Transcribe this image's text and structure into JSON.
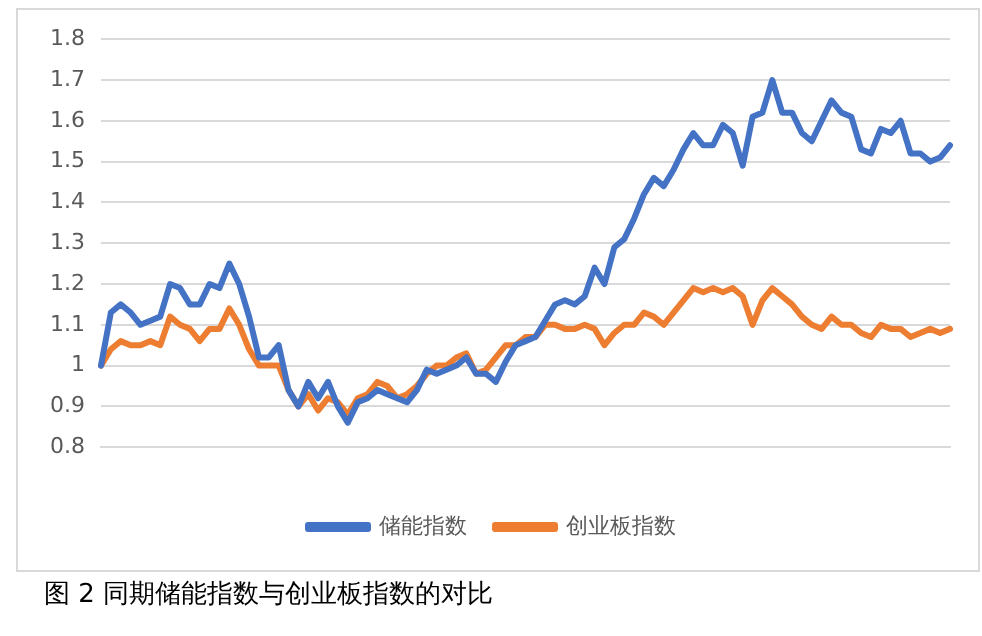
{
  "chart_data": {
    "type": "line",
    "title": "图 2 同期储能指数与创业板指数的对比",
    "categories": [
      null,
      null,
      null,
      null,
      null,
      null,
      null,
      null,
      null,
      null,
      null,
      null,
      null,
      null,
      null,
      null,
      null,
      null,
      null,
      null,
      null,
      null,
      null,
      null,
      null,
      null,
      null,
      null,
      null,
      null,
      null,
      null,
      null,
      null,
      null,
      null,
      null,
      null,
      null,
      null,
      null,
      null,
      null,
      null,
      null,
      null,
      null,
      null,
      null,
      null,
      null,
      null,
      null,
      null,
      null,
      null,
      null,
      null,
      null,
      null,
      null,
      null,
      null,
      null,
      null,
      null,
      null,
      null,
      null,
      null,
      null,
      null,
      null,
      null,
      null,
      null,
      null,
      null,
      null,
      null,
      null,
      null,
      null,
      null,
      null,
      null,
      null
    ],
    "series": [
      {
        "name": "储能指数",
        "color": "#4472c4",
        "values": [
          1.0,
          1.13,
          1.15,
          1.13,
          1.1,
          1.11,
          1.12,
          1.2,
          1.19,
          1.15,
          1.15,
          1.2,
          1.19,
          1.25,
          1.2,
          1.12,
          1.02,
          1.02,
          1.05,
          0.94,
          0.9,
          0.96,
          0.92,
          0.96,
          0.9,
          0.86,
          0.91,
          0.92,
          0.94,
          0.93,
          0.92,
          0.91,
          0.94,
          0.99,
          0.98,
          0.99,
          1.0,
          1.02,
          0.98,
          0.98,
          0.96,
          1.01,
          1.05,
          1.06,
          1.07,
          1.11,
          1.15,
          1.16,
          1.15,
          1.17,
          1.24,
          1.2,
          1.29,
          1.31,
          1.36,
          1.42,
          1.46,
          1.44,
          1.48,
          1.53,
          1.57,
          1.54,
          1.54,
          1.59,
          1.57,
          1.49,
          1.61,
          1.62,
          1.7,
          1.62,
          1.62,
          1.57,
          1.55,
          1.6,
          1.65,
          1.62,
          1.61,
          1.53,
          1.52,
          1.58,
          1.57,
          1.6,
          1.52,
          1.52,
          1.5,
          1.51,
          1.54
        ]
      },
      {
        "name": "创业板指数",
        "color": "#ed7d31",
        "values": [
          1.0,
          1.04,
          1.06,
          1.05,
          1.05,
          1.06,
          1.05,
          1.12,
          1.1,
          1.09,
          1.06,
          1.09,
          1.09,
          1.14,
          1.1,
          1.04,
          1.0,
          1.0,
          1.0,
          0.94,
          0.9,
          0.93,
          0.89,
          0.92,
          0.91,
          0.88,
          0.92,
          0.93,
          0.96,
          0.95,
          0.92,
          0.93,
          0.95,
          0.98,
          1.0,
          1.0,
          1.02,
          1.03,
          0.98,
          0.99,
          1.02,
          1.05,
          1.05,
          1.07,
          1.07,
          1.1,
          1.1,
          1.09,
          1.09,
          1.1,
          1.09,
          1.05,
          1.08,
          1.1,
          1.1,
          1.13,
          1.12,
          1.1,
          1.13,
          1.16,
          1.19,
          1.18,
          1.19,
          1.18,
          1.19,
          1.17,
          1.1,
          1.16,
          1.19,
          1.17,
          1.15,
          1.12,
          1.1,
          1.09,
          1.12,
          1.1,
          1.1,
          1.08,
          1.07,
          1.1,
          1.09,
          1.09,
          1.07,
          1.08,
          1.09,
          1.08,
          1.09
        ]
      }
    ],
    "ylim": [
      0.8,
      1.8
    ],
    "yticks": [
      0.8,
      0.9,
      1,
      1.1,
      1.2,
      1.3,
      1.4,
      1.5,
      1.6,
      1.7,
      1.8
    ],
    "grid": "y",
    "legend": "bottom",
    "marker": "none",
    "line_style": "solid"
  }
}
